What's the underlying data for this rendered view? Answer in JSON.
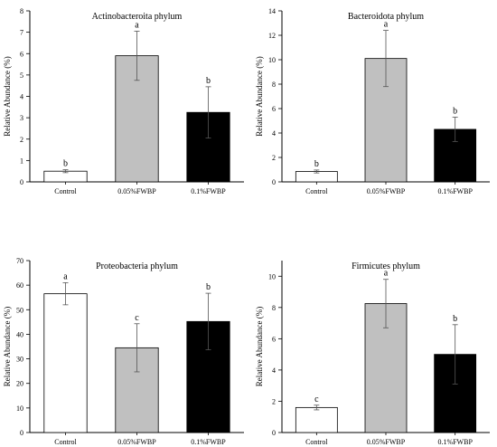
{
  "chart_data": [
    {
      "type": "bar",
      "title": "Actinobacteroita phylum",
      "ylabel": "Relative Abundance (%)",
      "categories": [
        "Control",
        "0.05%FWBP",
        "0.1%FWBP"
      ],
      "values": [
        0.5,
        5.9,
        3.25
      ],
      "errors": [
        0.07,
        1.15,
        1.2
      ],
      "letters": [
        "b",
        "a",
        "b"
      ],
      "colors": [
        "#ffffff",
        "#c0c0c0",
        "#000000"
      ],
      "ylim": [
        0,
        8
      ],
      "yticks": [
        0,
        1,
        2,
        3,
        4,
        5,
        6,
        7,
        8
      ]
    },
    {
      "type": "bar",
      "title": "Bacteroidota phylum",
      "ylabel": "Relative Abundance (%)",
      "categories": [
        "Control",
        "0.05%FWBP",
        "0.1%FWBP"
      ],
      "values": [
        0.85,
        10.1,
        4.3
      ],
      "errors": [
        0.12,
        2.3,
        1.0
      ],
      "letters": [
        "b",
        "a",
        "b"
      ],
      "colors": [
        "#ffffff",
        "#c0c0c0",
        "#000000"
      ],
      "ylim": [
        0,
        14
      ],
      "yticks": [
        0,
        2,
        4,
        6,
        8,
        10,
        12,
        14
      ]
    },
    {
      "type": "bar",
      "title": "Proteobacteria phylum",
      "ylabel": "Relative Abundance (%)",
      "categories": [
        "Control",
        "0.05%FWBP",
        "0.1%FWBP"
      ],
      "values": [
        56.5,
        34.5,
        45.2
      ],
      "errors": [
        4.5,
        9.8,
        11.5
      ],
      "letters": [
        "a",
        "c",
        "b"
      ],
      "colors": [
        "#ffffff",
        "#c0c0c0",
        "#000000"
      ],
      "ylim": [
        0,
        70
      ],
      "yticks": [
        0,
        10,
        20,
        30,
        40,
        50,
        60,
        70
      ]
    },
    {
      "type": "bar",
      "title": "Firmicutes phylum",
      "ylabel": "Relative Abundance (%)",
      "categories": [
        "Control",
        "0.05%FWBP",
        "0.1%FWBP"
      ],
      "values": [
        1.6,
        8.25,
        5.0
      ],
      "errors": [
        0.15,
        1.55,
        1.9
      ],
      "letters": [
        "c",
        "a",
        "b"
      ],
      "colors": [
        "#ffffff",
        "#c0c0c0",
        "#000000"
      ],
      "ylim": [
        0,
        11
      ],
      "yticks": [
        0,
        2,
        4,
        6,
        8,
        10
      ]
    }
  ]
}
